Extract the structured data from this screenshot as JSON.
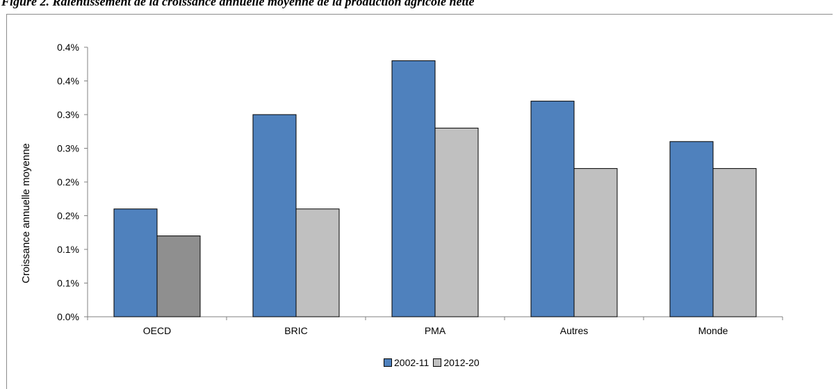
{
  "chart_data": {
    "type": "bar",
    "title": "Figure 2. Ralentissement de la croissance annuelle moyenne de la production agricole nette",
    "ylabel": "Croissance annuelle moyenne",
    "xlabel": "",
    "categories": [
      "OECD",
      "BRIC",
      "PMA",
      "Autres",
      "Monde"
    ],
    "series": [
      {
        "name": "2002-11",
        "values": [
          0.16,
          0.3,
          0.38,
          0.32,
          0.26
        ],
        "color": "#4f81bd"
      },
      {
        "name": "2012-20",
        "values": [
          0.12,
          0.16,
          0.28,
          0.22,
          0.22
        ],
        "color": "#c0c0c0"
      }
    ],
    "special_bar_colors": [
      {
        "series": 1,
        "category": 0,
        "color": "#8f8f8f"
      }
    ],
    "ylim": [
      0,
      0.4
    ],
    "y_ticks": [
      0,
      0.05,
      0.1,
      0.15,
      0.2,
      0.25,
      0.3,
      0.35,
      0.4
    ],
    "y_tick_labels": [
      "0.0%",
      "0.1%",
      "0.1%",
      "0.2%",
      "0.2%",
      "0.3%",
      "0.3%",
      "0.4%",
      "0.4%"
    ],
    "grid": false,
    "legend_position": "bottom"
  }
}
